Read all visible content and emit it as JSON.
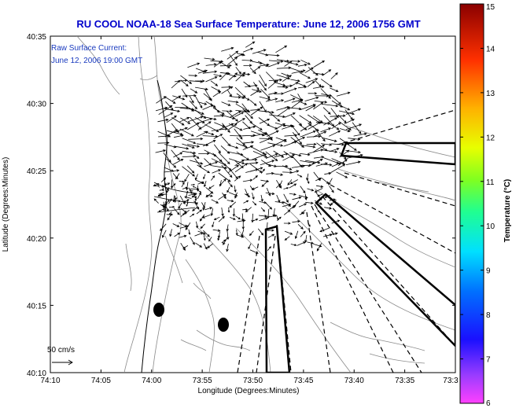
{
  "title": "RU COOL  NOAA-18  Sea Surface Temperature:  June 12, 2006 1756 GMT",
  "annotation_line1": "Raw Surface Current:",
  "annotation_line2": "June 12, 2006 19:00 GMT",
  "scale_label": "50 cm/s",
  "xlabel": "Longitude (Degrees:Minutes)",
  "ylabel": "Latitude (Degrees:Minutes)",
  "colorbar_label": "Temperature (°C)",
  "colors": {
    "title": "#0000cc",
    "annotation": "#1a3bbf",
    "axis": "#000000",
    "contour": "#8a8a8a",
    "vector": "#000000"
  },
  "map_data": {
    "x_ticks": [
      "74:10",
      "74:05",
      "74:00",
      "73:55",
      "73:50",
      "73:45",
      "73:40",
      "73:35",
      "73:3"
    ],
    "y_ticks": [
      "40:35",
      "40:30",
      "40:25",
      "40:20",
      "40:15",
      "40:10"
    ],
    "colorbar_ticks": [
      "15",
      "14",
      "13",
      "12",
      "11",
      "10",
      "9",
      "8",
      "7",
      "6"
    ],
    "colorbar_range": [
      6,
      15
    ]
  }
}
